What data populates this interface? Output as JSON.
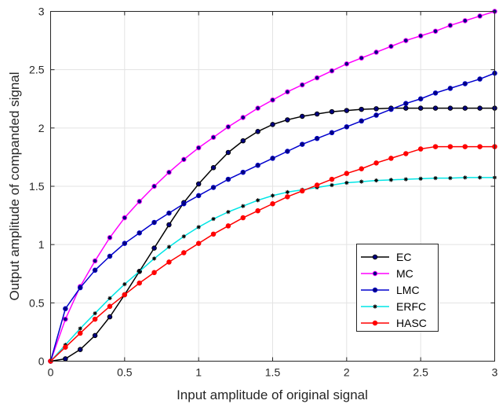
{
  "chart_data": {
    "type": "line",
    "title": "",
    "xlabel": "Input amplitude of original signal",
    "ylabel": "Output amplitude of companded signal",
    "xlim": [
      0,
      3
    ],
    "ylim": [
      0,
      3
    ],
    "xticks": [
      0,
      0.5,
      1,
      1.5,
      2,
      2.5,
      3
    ],
    "xtick_labels": [
      "0",
      "0.5",
      "1",
      "1.5",
      "2",
      "2.5",
      "3"
    ],
    "yticks": [
      0,
      0.5,
      1,
      1.5,
      2,
      2.5,
      3
    ],
    "ytick_labels": [
      "0",
      "0.5",
      "1",
      "1.5",
      "2",
      "2.5",
      "3"
    ],
    "grid": true,
    "legend_position": "bottom-right",
    "x": [
      0,
      0.1,
      0.2,
      0.3,
      0.4,
      0.5,
      0.6,
      0.7,
      0.8,
      0.9,
      1.0,
      1.1,
      1.2,
      1.3,
      1.4,
      1.5,
      1.6,
      1.7,
      1.8,
      1.9,
      2.0,
      2.1,
      2.2,
      2.3,
      2.4,
      2.5,
      2.6,
      2.7,
      2.8,
      2.9,
      3.0
    ],
    "series": [
      {
        "name": "EC",
        "color": "#000000",
        "marker_color": "#000080",
        "marker": "circle",
        "values": [
          0,
          0.02,
          0.1,
          0.22,
          0.38,
          0.57,
          0.77,
          0.97,
          1.17,
          1.36,
          1.52,
          1.66,
          1.79,
          1.89,
          1.97,
          2.03,
          2.07,
          2.1,
          2.12,
          2.14,
          2.15,
          2.16,
          2.165,
          2.17,
          2.17,
          2.17,
          2.17,
          2.17,
          2.17,
          2.17,
          2.17
        ]
      },
      {
        "name": "MC",
        "color": "#ff00ff",
        "marker_color": "#000080",
        "marker": "circle",
        "values": [
          0,
          0.36,
          0.64,
          0.86,
          1.06,
          1.23,
          1.37,
          1.5,
          1.62,
          1.73,
          1.83,
          1.92,
          2.01,
          2.09,
          2.17,
          2.24,
          2.31,
          2.37,
          2.43,
          2.49,
          2.55,
          2.6,
          2.65,
          2.7,
          2.75,
          2.79,
          2.83,
          2.88,
          2.92,
          2.96,
          3.0
        ]
      },
      {
        "name": "LMC",
        "color": "#0000cd",
        "marker_color": "#000080",
        "marker": "circle",
        "values": [
          0,
          0.45,
          0.63,
          0.78,
          0.9,
          1.01,
          1.1,
          1.19,
          1.27,
          1.35,
          1.42,
          1.49,
          1.56,
          1.62,
          1.68,
          1.74,
          1.8,
          1.86,
          1.91,
          1.96,
          2.01,
          2.06,
          2.11,
          2.16,
          2.21,
          2.25,
          2.3,
          2.34,
          2.38,
          2.42,
          2.47
        ]
      },
      {
        "name": "ERFC",
        "color": "#00e5e5",
        "marker_color": "#000000",
        "marker": "star",
        "values": [
          0,
          0.14,
          0.28,
          0.41,
          0.54,
          0.66,
          0.77,
          0.88,
          0.98,
          1.07,
          1.15,
          1.22,
          1.28,
          1.33,
          1.38,
          1.42,
          1.45,
          1.47,
          1.49,
          1.51,
          1.53,
          1.54,
          1.55,
          1.555,
          1.56,
          1.565,
          1.57,
          1.57,
          1.575,
          1.575,
          1.575
        ]
      },
      {
        "name": "HASC",
        "color": "#ff0000",
        "marker_color": "#ff0000",
        "marker": "circle",
        "values": [
          0,
          0.12,
          0.24,
          0.36,
          0.47,
          0.57,
          0.67,
          0.76,
          0.85,
          0.93,
          1.01,
          1.09,
          1.16,
          1.23,
          1.29,
          1.35,
          1.41,
          1.46,
          1.51,
          1.56,
          1.61,
          1.65,
          1.7,
          1.74,
          1.78,
          1.82,
          1.84,
          1.84,
          1.84,
          1.84,
          1.84
        ]
      }
    ]
  }
}
